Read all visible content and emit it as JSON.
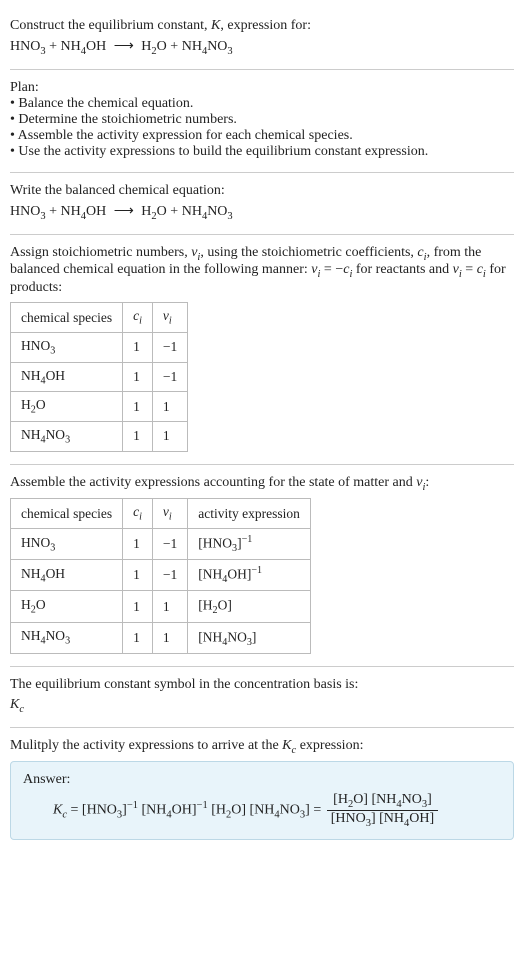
{
  "intro": {
    "line1": "Construct the equilibrium constant, ",
    "K": "K",
    "line1b": ", expression for:"
  },
  "reaction": {
    "r1": "HNO",
    "r1sub": "3",
    "plus": " + ",
    "r2a": "NH",
    "r2sub1": "4",
    "r2b": "OH",
    "arrow": "⟶",
    "p1a": "H",
    "p1sub": "2",
    "p1b": "O",
    "p2a": "NH",
    "p2sub1": "4",
    "p2b": "NO",
    "p2sub2": "3"
  },
  "plan": {
    "title": "Plan:",
    "b1": "• Balance the chemical equation.",
    "b2": "• Determine the stoichiometric numbers.",
    "b3": "• Assemble the activity expression for each chemical species.",
    "b4": "• Use the activity expressions to build the equilibrium constant expression."
  },
  "balanced": {
    "title": "Write the balanced chemical equation:"
  },
  "stoich": {
    "text1": "Assign stoichiometric numbers, ",
    "nu": "ν",
    "sub_i": "i",
    "text2": ", using the stoichiometric coefficients, ",
    "c": "c",
    "text3": ", from the balanced chemical equation in the following manner: ",
    "eq1a": "ν",
    "eq1b": " = −",
    "eq1c": "c",
    "text4": " for reactants and ",
    "eq2a": "ν",
    "eq2b": " = ",
    "eq2c": "c",
    "text5": " for products:",
    "headers": {
      "h1": "chemical species",
      "h2": "c",
      "h2sub": "i",
      "h3": "ν",
      "h3sub": "i"
    },
    "rows": [
      {
        "sp_a": "HNO",
        "sp_s1": "3",
        "sp_b": "",
        "sp_s2": "",
        "c": "1",
        "v": "−1"
      },
      {
        "sp_a": "NH",
        "sp_s1": "4",
        "sp_b": "OH",
        "sp_s2": "",
        "c": "1",
        "v": "−1"
      },
      {
        "sp_a": "H",
        "sp_s1": "2",
        "sp_b": "O",
        "sp_s2": "",
        "c": "1",
        "v": "1"
      },
      {
        "sp_a": "NH",
        "sp_s1": "4",
        "sp_b": "NO",
        "sp_s2": "3",
        "c": "1",
        "v": "1"
      }
    ]
  },
  "activity": {
    "title": "Assemble the activity expressions accounting for the state of matter and ",
    "nu": "ν",
    "sub_i": "i",
    "colon": ":",
    "headers": {
      "h1": "chemical species",
      "h2": "c",
      "h2sub": "i",
      "h3": "ν",
      "h3sub": "i",
      "h4": "activity expression"
    },
    "rows": [
      {
        "sp_a": "HNO",
        "sp_s1": "3",
        "sp_b": "",
        "sp_s2": "",
        "c": "1",
        "v": "−1",
        "ae_a": "[HNO",
        "ae_s1": "3",
        "ae_b": "]",
        "ae_sup": "−1",
        "ae_c": "",
        "ae_s2": "",
        "ae_d": ""
      },
      {
        "sp_a": "NH",
        "sp_s1": "4",
        "sp_b": "OH",
        "sp_s2": "",
        "c": "1",
        "v": "−1",
        "ae_a": "[NH",
        "ae_s1": "4",
        "ae_b": "OH]",
        "ae_sup": "−1",
        "ae_c": "",
        "ae_s2": "",
        "ae_d": ""
      },
      {
        "sp_a": "H",
        "sp_s1": "2",
        "sp_b": "O",
        "sp_s2": "",
        "c": "1",
        "v": "1",
        "ae_a": "[H",
        "ae_s1": "2",
        "ae_b": "O]",
        "ae_sup": "",
        "ae_c": "",
        "ae_s2": "",
        "ae_d": ""
      },
      {
        "sp_a": "NH",
        "sp_s1": "4",
        "sp_b": "NO",
        "sp_s2": "3",
        "c": "1",
        "v": "1",
        "ae_a": "[NH",
        "ae_s1": "4",
        "ae_b": "NO",
        "ae_sup": "",
        "ae_c": "",
        "ae_s2": "3",
        "ae_d": "]"
      }
    ]
  },
  "kc_symbol": {
    "text": "The equilibrium constant symbol in the concentration basis is:",
    "K": "K",
    "sub": "c"
  },
  "multiply": {
    "text1": "Mulitply the activity expressions to arrive at the ",
    "K": "K",
    "sub": "c",
    "text2": " expression:"
  },
  "answer": {
    "label": "Answer:",
    "K": "K",
    "sub": "c",
    "eq": " = ",
    "t1": "[HNO",
    "t1s": "3",
    "t1b": "]",
    "t1sup": "−1",
    "sp": " ",
    "t2": "[NH",
    "t2s": "4",
    "t2b": "OH]",
    "t2sup": "−1",
    "t3": "[H",
    "t3s": "2",
    "t3b": "O]",
    "t4": "[NH",
    "t4s": "4",
    "t4b": "NO",
    "t4s2": "3",
    "t4c": "]",
    "eq2": " = ",
    "num1": "[H",
    "num1s": "2",
    "num1b": "O] [NH",
    "num1s2": "4",
    "num1c": "NO",
    "num1s3": "3",
    "num1d": "]",
    "den1": "[HNO",
    "den1s": "3",
    "den1b": "] [NH",
    "den1s2": "4",
    "den1c": "OH]"
  }
}
